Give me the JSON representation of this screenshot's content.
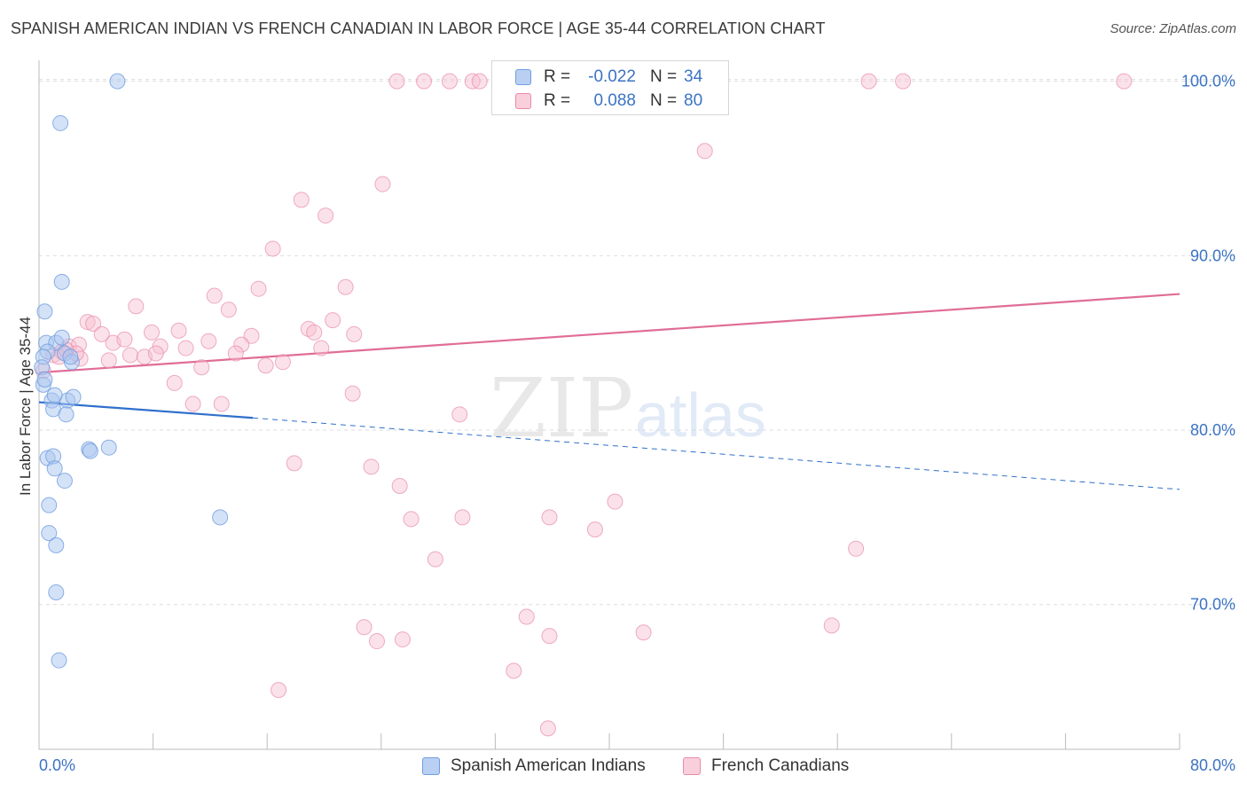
{
  "title": "SPANISH AMERICAN INDIAN VS FRENCH CANADIAN IN LABOR FORCE | AGE 35-44 CORRELATION CHART",
  "source": "Source: ZipAtlas.com",
  "watermark": {
    "zip": "ZIP",
    "atlas": "atlas"
  },
  "colors": {
    "blue_fill": "#a9c6f0",
    "blue_stroke": "#6f9ee0",
    "blue_line": "#2f6fcc",
    "pink_fill": "#f7bfd1",
    "pink_stroke": "#e88aa9",
    "pink_line": "#e06d97",
    "tick_text": "#3b73c4",
    "grid": "#dddddd"
  },
  "legend": {
    "r_label": "R =",
    "n_label": "N =",
    "rows": [
      {
        "series": "Spanish American Indians",
        "r": "-0.022",
        "n": "34"
      },
      {
        "series": "French Canadians",
        "r": "0.088",
        "n": "80"
      }
    ]
  },
  "chart_data": {
    "type": "scatter",
    "title": "SPANISH AMERICAN INDIAN VS FRENCH CANADIAN IN LABOR FORCE | AGE 35-44 CORRELATION CHART",
    "xlabel": "",
    "ylabel": "In Labor Force | Age 35-44",
    "xlim": [
      0,
      80
    ],
    "ylim": [
      61.7,
      101.2
    ],
    "x_tick_labels": [
      "0.0%",
      "80.0%"
    ],
    "y_ticks": [
      70,
      80,
      90,
      100
    ],
    "y_tick_labels": [
      "70.0%",
      "80.0%",
      "90.0%",
      "100.0%"
    ],
    "grid": true,
    "legend_position": "top-center",
    "series": [
      {
        "name": "Spanish American Indians",
        "color": "#a9c6f0",
        "trend": {
          "x_solid": [
            0,
            15
          ],
          "y_solid": [
            81.6,
            80.7
          ],
          "x_dashed": [
            15,
            80
          ],
          "y_dashed": [
            80.7,
            76.6
          ]
        },
        "points": [
          [
            5.5,
            100.0
          ],
          [
            1.5,
            97.6
          ],
          [
            1.6,
            88.5
          ],
          [
            0.4,
            86.8
          ],
          [
            0.5,
            85.0
          ],
          [
            1.2,
            85.0
          ],
          [
            1.6,
            85.3
          ],
          [
            0.6,
            84.5
          ],
          [
            1.8,
            84.4
          ],
          [
            2.3,
            83.9
          ],
          [
            0.3,
            84.2
          ],
          [
            0.2,
            83.6
          ],
          [
            0.3,
            82.6
          ],
          [
            0.9,
            81.7
          ],
          [
            1.0,
            81.2
          ],
          [
            2.0,
            81.7
          ],
          [
            2.4,
            81.9
          ],
          [
            1.9,
            80.9
          ],
          [
            3.5,
            78.9
          ],
          [
            3.6,
            78.8
          ],
          [
            4.9,
            79.0
          ],
          [
            0.6,
            78.4
          ],
          [
            1.0,
            78.5
          ],
          [
            1.1,
            77.8
          ],
          [
            1.8,
            77.1
          ],
          [
            0.7,
            75.7
          ],
          [
            12.7,
            75.0
          ],
          [
            0.7,
            74.1
          ],
          [
            1.2,
            73.4
          ],
          [
            1.2,
            70.7
          ],
          [
            1.4,
            66.8
          ],
          [
            0.4,
            82.9
          ],
          [
            1.1,
            82.0
          ],
          [
            2.2,
            84.2
          ]
        ]
      },
      {
        "name": "French Canadians",
        "color": "#f7bfd1",
        "trend": {
          "x": [
            0,
            80
          ],
          "y": [
            83.3,
            87.8
          ]
        },
        "points": [
          [
            25.1,
            100.0
          ],
          [
            27.0,
            100.0
          ],
          [
            28.8,
            100.0
          ],
          [
            30.4,
            100.0
          ],
          [
            30.9,
            100.0
          ],
          [
            33.2,
            100.0
          ],
          [
            35.9,
            100.0
          ],
          [
            37.2,
            100.0
          ],
          [
            58.2,
            100.0
          ],
          [
            60.6,
            100.0
          ],
          [
            76.1,
            100.0
          ],
          [
            46.7,
            96.0
          ],
          [
            24.1,
            94.1
          ],
          [
            18.4,
            93.2
          ],
          [
            20.1,
            92.3
          ],
          [
            16.4,
            90.4
          ],
          [
            15.4,
            88.1
          ],
          [
            21.5,
            88.2
          ],
          [
            12.3,
            87.7
          ],
          [
            13.3,
            86.9
          ],
          [
            6.8,
            87.1
          ],
          [
            3.4,
            86.2
          ],
          [
            3.8,
            86.1
          ],
          [
            4.4,
            85.5
          ],
          [
            7.9,
            85.6
          ],
          [
            9.8,
            85.7
          ],
          [
            11.9,
            85.1
          ],
          [
            14.9,
            85.4
          ],
          [
            18.9,
            85.8
          ],
          [
            19.3,
            85.6
          ],
          [
            20.6,
            86.3
          ],
          [
            22.1,
            85.5
          ],
          [
            2.1,
            84.8
          ],
          [
            2.8,
            84.9
          ],
          [
            5.2,
            85.0
          ],
          [
            6.0,
            85.2
          ],
          [
            8.5,
            84.8
          ],
          [
            10.3,
            84.7
          ],
          [
            14.2,
            84.9
          ],
          [
            19.8,
            84.7
          ],
          [
            1.0,
            84.3
          ],
          [
            2.9,
            84.1
          ],
          [
            4.9,
            84.0
          ],
          [
            6.4,
            84.3
          ],
          [
            7.4,
            84.2
          ],
          [
            8.2,
            84.4
          ],
          [
            13.8,
            84.4
          ],
          [
            15.9,
            83.7
          ],
          [
            17.1,
            83.9
          ],
          [
            11.4,
            83.6
          ],
          [
            1.6,
            84.5
          ],
          [
            9.5,
            82.7
          ],
          [
            22.0,
            82.1
          ],
          [
            10.8,
            81.5
          ],
          [
            12.8,
            81.5
          ],
          [
            29.5,
            80.9
          ],
          [
            17.9,
            78.1
          ],
          [
            23.3,
            77.9
          ],
          [
            25.3,
            76.8
          ],
          [
            35.8,
            75.0
          ],
          [
            40.4,
            75.9
          ],
          [
            26.1,
            74.9
          ],
          [
            29.7,
            75.0
          ],
          [
            39.0,
            74.3
          ],
          [
            27.8,
            72.6
          ],
          [
            57.3,
            73.2
          ],
          [
            34.2,
            69.3
          ],
          [
            22.8,
            68.7
          ],
          [
            23.7,
            67.9
          ],
          [
            25.5,
            68.0
          ],
          [
            35.8,
            68.2
          ],
          [
            42.4,
            68.4
          ],
          [
            55.6,
            68.8
          ],
          [
            33.3,
            66.2
          ],
          [
            16.8,
            65.1
          ],
          [
            35.7,
            62.9
          ],
          [
            0.3,
            83.4
          ],
          [
            1.4,
            84.2
          ],
          [
            2.6,
            84.4
          ],
          [
            1.9,
            84.6
          ]
        ]
      }
    ]
  }
}
